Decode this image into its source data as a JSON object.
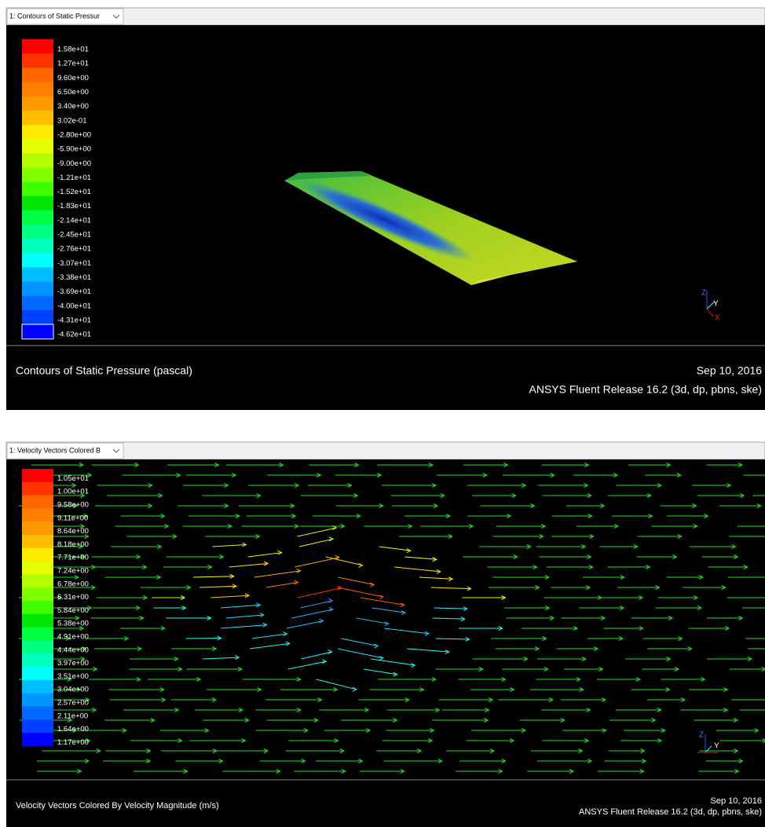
{
  "panels": [
    {
      "tab_title": "1: Contours of Static Pressur",
      "legend": {
        "labels": [
          "1.58e+01",
          "1.27e+01",
          "9.60e+00",
          "6.50e+00",
          "3.40e+00",
          "3.02e-01",
          "-2.80e+00",
          "-5.90e+00",
          "-9.00e+00",
          "-1.21e+01",
          "-1.52e+01",
          "-1.83e+01",
          "-2.14e+01",
          "-2.45e+01",
          "-2.76e+01",
          "-3.07e+01",
          "-3.38e+01",
          "-3.69e+01",
          "-4.00e+01",
          "-4.31e+01",
          "-4.62e+01"
        ],
        "colors": [
          "hsl(0,100%,50%)",
          "hsl(12,100%,50%)",
          "hsl(24,100%,50%)",
          "hsl(30,100%,50%)",
          "hsl(36,100%,50%)",
          "hsl(45,100%,50%)",
          "hsl(55,100%,50%)",
          "hsl(66,100%,50%)",
          "hsl(78,100%,50%)",
          "hsl(90,100%,50%)",
          "hsl(105,100%,50%)",
          "hsl(120,100%,45%)",
          "hsl(135,100%,50%)",
          "hsl(150,100%,50%)",
          "hsl(165,100%,50%)",
          "hsl(180,100%,50%)",
          "hsl(195,100%,50%)",
          "hsl(205,100%,50%)",
          "hsl(215,100%,50%)",
          "hsl(225,100%,50%)",
          "hsl(240,100%,50%)"
        ]
      },
      "axes": [
        "Z",
        "Y",
        "X"
      ],
      "footer": {
        "title": "Contours of Static Pressure (pascal)",
        "date": "Sep 10, 2016",
        "release": "ANSYS Fluent Release 16.2 (3d, dp, pbns, ske)"
      }
    },
    {
      "tab_title": "1: Velocity Vectors Colored B",
      "legend": {
        "labels": [
          "1.05e+01",
          "1.00e+01",
          "9.58e+00",
          "9.11e+00",
          "8.64e+00",
          "8.18e+00",
          "7.71e+00",
          "7.24e+00",
          "6.78e+00",
          "6.31e+00",
          "5.84e+00",
          "5.38e+00",
          "4.91e+00",
          "4.44e+00",
          "3.97e+00",
          "3.51e+00",
          "3.04e+00",
          "2.57e+00",
          "2.11e+00",
          "1.64e+00",
          "1.17e+00"
        ],
        "colors": [
          "hsl(0,100%,50%)",
          "hsl(12,100%,50%)",
          "hsl(24,100%,50%)",
          "hsl(30,100%,50%)",
          "hsl(36,100%,50%)",
          "hsl(45,100%,50%)",
          "hsl(55,100%,50%)",
          "hsl(66,100%,50%)",
          "hsl(78,100%,50%)",
          "hsl(90,100%,50%)",
          "hsl(105,100%,50%)",
          "hsl(120,100%,45%)",
          "hsl(135,100%,50%)",
          "hsl(150,100%,50%)",
          "hsl(165,100%,50%)",
          "hsl(180,100%,50%)",
          "hsl(195,100%,50%)",
          "hsl(205,100%,50%)",
          "hsl(215,100%,50%)",
          "hsl(225,100%,50%)",
          "hsl(240,100%,50%)"
        ]
      },
      "axes": [
        "Z",
        "Y"
      ],
      "footer": {
        "title": "Velocity Vectors Colored By Velocity Magnitude (m/s)",
        "date": "Sep 10, 2016",
        "release": "ANSYS Fluent Release 16.2 (3d, dp, pbns, ske)"
      }
    }
  ]
}
